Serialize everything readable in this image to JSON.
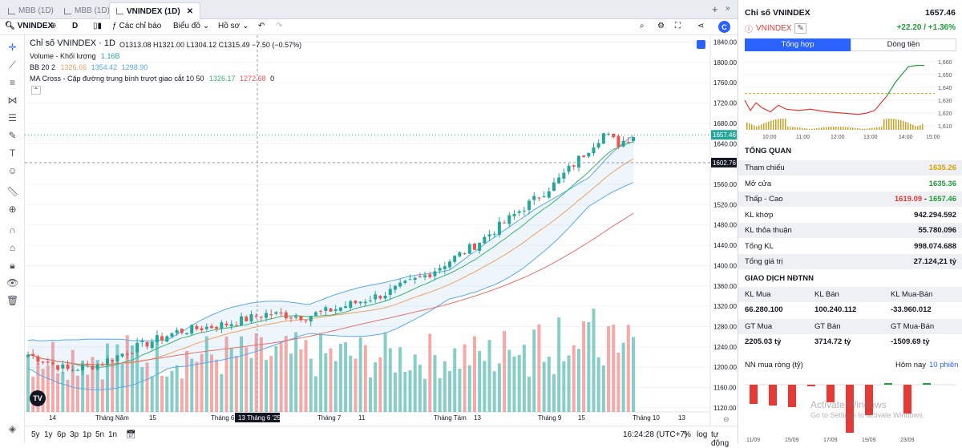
{
  "tabs": [
    {
      "label": "MBB (1D)",
      "active": false
    },
    {
      "label": "MBB (1D)",
      "active": false
    },
    {
      "label": "VNINDEX (1D)",
      "active": true
    }
  ],
  "toolbar": {
    "symbol": "VNINDEX",
    "interval": "D",
    "indicators_label": "Các chỉ báo",
    "chart_type_label": "Biểu đồ",
    "profile_label": "Hồ sơ"
  },
  "legend": {
    "title": "Chỉ số VNINDEX · 1D",
    "ohlc": "O1313.08 H1321.00 L1304.12 C1315.49 −7.50 (−0.57%)",
    "volume": "Volume - Khối lượng",
    "volume_val": "1.16B",
    "bb_label": "BB 20 2",
    "bb_mid": "1326.66",
    "bb_up": "1354.42",
    "bb_low": "1298.90",
    "ma_label": "MA Cross - Cặp đường trung bình trượt giao cắt 10 50",
    "ma_fast": "1326.17",
    "ma_slow": "1272.68",
    "ma_x": "0"
  },
  "price_axis": [
    "1840.00",
    "1800.00",
    "1760.00",
    "1720.00",
    "1680.00",
    "1640.00",
    "1600.00",
    "1560.00",
    "1520.00",
    "1480.00",
    "1440.00",
    "1400.00",
    "1360.00",
    "1320.00",
    "1280.00",
    "1240.00",
    "1200.00",
    "1160.00",
    "1120.00"
  ],
  "last_price_tag": "1657.46",
  "crosshair_price_tag": "1602.76",
  "time_axis": [
    "14",
    "Tháng Năm",
    "15",
    "Tháng 6",
    "13 Tháng 6 '25",
    "Tháng 7",
    "11",
    "Tháng Tám",
    "13",
    "Tháng 9",
    "15",
    "Tháng 10",
    "13"
  ],
  "bottom": {
    "ranges": [
      "5y",
      "1y",
      "6p",
      "3p",
      "1p",
      "5n",
      "1n"
    ],
    "time": "16:24:28 (UTC+7)",
    "percent": "%",
    "log": "log",
    "auto": "tự động"
  },
  "panel": {
    "title": "Chỉ số VNINDEX",
    "price": "1657.46",
    "symbol": "VNINDEX",
    "change": "+22.20 / +1.36%",
    "tab_summary": "Tổng hợp",
    "tab_flow": "Dòng tiền",
    "mini_x": [
      "10:00",
      "11:00",
      "12:00",
      "13:00",
      "14:00",
      "15:00"
    ],
    "mini_y": [
      "1,660",
      "1,650",
      "1,640",
      "1,630",
      "1,620",
      "1,610"
    ],
    "overview_title": "TỔNG QUAN",
    "rows": [
      {
        "label": "Tham chiếu",
        "value": "1635.26"
      },
      {
        "label": "Mở cửa",
        "value": "1635.36"
      },
      {
        "label": "Thấp - Cao",
        "low": "1619.09",
        "sep": " - ",
        "high": "1657.46"
      },
      {
        "label": "KL khớp",
        "value": "942.294.592"
      },
      {
        "label": "KL thỏa thuận",
        "value": "55.780.096"
      },
      {
        "label": "Tổng KL",
        "value": "998.074.688"
      },
      {
        "label": "Tổng giá trị",
        "value": "27.124,21 tỷ"
      }
    ],
    "foreign_title": "GIAO DỊCH NĐTNN",
    "foreign_headers": [
      "KL Mua",
      "KL Bán",
      "KL Mua-Bán"
    ],
    "foreign_values": [
      "66.280.100",
      "100.240.112",
      "-33.960.012"
    ],
    "foreign_headers2": [
      "GT Mua",
      "GT Bán",
      "GT Mua-Bán"
    ],
    "foreign_values2": [
      "2205.03 tỷ",
      "3714.72 tỷ",
      "-1509.69 tỷ"
    ],
    "net_title": "NN mua ròng (tỷ)",
    "net_today": "Hôm nay",
    "net_period": "10 phiên",
    "net_dates": [
      "11/09",
      "15/09",
      "17/09",
      "19/09",
      "23/09"
    ],
    "watermark1": "Activate Windows",
    "watermark2": "Go to Settings to activate Windows."
  },
  "colors": {
    "up": "#26a69a",
    "down": "#ef5350",
    "bb": "#5aa9e6",
    "ma_fast": "#3bb36b",
    "ma_slow": "#f0a060",
    "accent": "#2962ff"
  }
}
